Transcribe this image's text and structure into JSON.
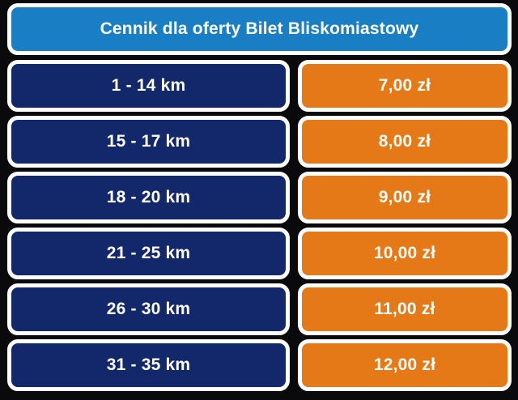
{
  "header": {
    "title": "Cennik dla oferty Bilet Bliskomiastowy"
  },
  "chart_data": {
    "type": "table",
    "title": "Cennik dla oferty Bilet Bliskomiastowy",
    "rows": [
      {
        "distance": "1 - 14 km",
        "price": "7,00 zł",
        "price_value_pln": 7.0
      },
      {
        "distance": "15 - 17 km",
        "price": "8,00 zł",
        "price_value_pln": 8.0
      },
      {
        "distance": "18 - 20 km",
        "price": "9,00 zł",
        "price_value_pln": 9.0
      },
      {
        "distance": "21 - 25 km",
        "price": "10,00 zł",
        "price_value_pln": 10.0
      },
      {
        "distance": "26 - 30 km",
        "price": "11,00 zł",
        "price_value_pln": 11.0
      },
      {
        "distance": "31 - 35 km",
        "price": "12,00 zł",
        "price_value_pln": 12.0
      }
    ]
  },
  "colors": {
    "background": "#0a0a0c",
    "header_blue": "#1a7ec5",
    "cell_navy": "#13286b",
    "cell_orange": "#e67917",
    "border_white": "#fdfdfd",
    "text": "#ffffff"
  }
}
